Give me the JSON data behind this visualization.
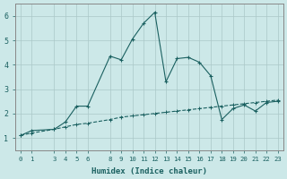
{
  "xlabel": "Humidex (Indice chaleur)",
  "background_color": "#cce8e8",
  "grid_color": "#aac8c8",
  "line_color": "#1a6060",
  "x_ticks": [
    0,
    1,
    3,
    4,
    5,
    6,
    8,
    9,
    10,
    11,
    12,
    13,
    14,
    15,
    16,
    17,
    18,
    19,
    20,
    21,
    22,
    23
  ],
  "ylim": [
    0.5,
    6.5
  ],
  "xlim": [
    -0.5,
    23.5
  ],
  "series1_x": [
    0,
    1,
    3,
    4,
    5,
    6,
    8,
    9,
    10,
    11,
    12,
    13,
    14,
    15,
    16,
    17,
    18,
    19,
    20,
    21,
    22,
    23
  ],
  "series1_y": [
    1.1,
    1.3,
    1.35,
    1.65,
    2.3,
    2.3,
    4.35,
    4.2,
    5.05,
    5.7,
    6.15,
    3.3,
    4.25,
    4.3,
    4.1,
    3.55,
    1.75,
    2.2,
    2.35,
    2.1,
    2.45,
    2.5
  ],
  "series2_x": [
    0,
    1,
    3,
    4,
    5,
    6,
    8,
    9,
    10,
    11,
    12,
    13,
    14,
    15,
    16,
    17,
    18,
    19,
    20,
    21,
    22,
    23
  ],
  "series2_y": [
    1.1,
    1.2,
    1.35,
    1.45,
    1.55,
    1.6,
    1.75,
    1.85,
    1.9,
    1.95,
    2.0,
    2.05,
    2.1,
    2.15,
    2.2,
    2.25,
    2.3,
    2.35,
    2.4,
    2.45,
    2.5,
    2.55
  ],
  "yticks": [
    1,
    2,
    3,
    4,
    5,
    6
  ]
}
